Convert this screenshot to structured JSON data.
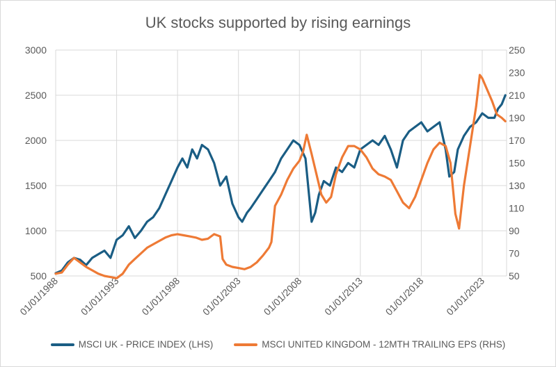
{
  "chart_data": {
    "type": "line",
    "title": "UK stocks supported by rising earnings",
    "x_ticks": [
      "01/01/1988",
      "01/01/1993",
      "01/01/1998",
      "01/01/2003",
      "01/01/2008",
      "01/01/2013",
      "01/01/2018",
      "01/01/2023"
    ],
    "x_range": [
      1988.0,
      2025.0
    ],
    "y_left": {
      "ticks": [
        500,
        1000,
        1500,
        2000,
        2500,
        3000
      ],
      "range": [
        500,
        3000
      ]
    },
    "y_right": {
      "ticks": [
        50,
        70,
        90,
        110,
        130,
        150,
        170,
        190,
        210,
        230,
        250
      ],
      "range": [
        50,
        250
      ]
    },
    "grid": "vertical and horizontal",
    "legend_position": "bottom",
    "colors": {
      "price": "#1a5d84",
      "eps": "#ee7a35",
      "grid": "#d9d9d9"
    },
    "series": [
      {
        "name": "MSCI UK - PRICE INDEX (LHS)",
        "axis": "left",
        "x": [
          1988.0,
          1988.5,
          1989.0,
          1989.5,
          1990.0,
          1990.5,
          1991.0,
          1991.5,
          1992.0,
          1992.5,
          1993.0,
          1993.5,
          1994.0,
          1994.5,
          1995.0,
          1995.5,
          1996.0,
          1996.5,
          1997.0,
          1997.5,
          1998.0,
          1998.4,
          1998.8,
          1999.2,
          1999.6,
          2000.0,
          2000.5,
          2001.0,
          2001.5,
          2002.0,
          2002.5,
          2003.0,
          2003.3,
          2003.7,
          2004.0,
          2004.5,
          2005.0,
          2005.5,
          2006.0,
          2006.5,
          2007.0,
          2007.5,
          2008.0,
          2008.5,
          2009.0,
          2009.3,
          2009.6,
          2010.0,
          2010.5,
          2011.0,
          2011.5,
          2012.0,
          2012.5,
          2013.0,
          2013.5,
          2014.0,
          2014.5,
          2015.0,
          2015.5,
          2016.0,
          2016.5,
          2017.0,
          2017.5,
          2018.0,
          2018.5,
          2019.0,
          2019.5,
          2020.0,
          2020.3,
          2020.7,
          2021.0,
          2021.5,
          2022.0,
          2022.5,
          2023.0,
          2023.5,
          2024.0,
          2024.3,
          2024.6,
          2024.9
        ],
        "values": [
          530,
          560,
          650,
          700,
          680,
          620,
          700,
          740,
          780,
          700,
          900,
          950,
          1050,
          920,
          1000,
          1100,
          1150,
          1250,
          1400,
          1550,
          1700,
          1800,
          1700,
          1900,
          1800,
          1950,
          1900,
          1750,
          1500,
          1600,
          1300,
          1150,
          1100,
          1200,
          1250,
          1350,
          1450,
          1550,
          1650,
          1800,
          1900,
          2000,
          1950,
          1800,
          1100,
          1200,
          1400,
          1550,
          1500,
          1700,
          1650,
          1750,
          1700,
          1900,
          1950,
          2000,
          1950,
          2050,
          1900,
          1700,
          2000,
          2100,
          2150,
          2200,
          2100,
          2150,
          2200,
          1900,
          1600,
          1650,
          1900,
          2050,
          2150,
          2200,
          2300,
          2250,
          2250,
          2350,
          2400,
          2500
        ]
      },
      {
        "name": "MSCI UNITED KINGDOM - 12MTH TRAILING EPS (RHS)",
        "axis": "right",
        "x": [
          1988.0,
          1988.5,
          1989.0,
          1989.5,
          1990.0,
          1990.5,
          1991.0,
          1991.5,
          1992.0,
          1992.5,
          1993.0,
          1993.5,
          1994.0,
          1994.5,
          1995.0,
          1995.5,
          1996.0,
          1996.5,
          1997.0,
          1997.5,
          1998.0,
          1998.5,
          1999.0,
          1999.5,
          2000.0,
          2000.5,
          2001.0,
          2001.5,
          2001.7,
          2002.0,
          2002.5,
          2003.0,
          2003.5,
          2004.0,
          2004.5,
          2005.0,
          2005.5,
          2005.7,
          2006.0,
          2006.5,
          2007.0,
          2007.5,
          2008.0,
          2008.3,
          2008.6,
          2009.0,
          2009.4,
          2009.8,
          2010.2,
          2010.6,
          2011.0,
          2011.5,
          2012.0,
          2012.5,
          2013.0,
          2013.5,
          2014.0,
          2014.5,
          2015.0,
          2015.5,
          2016.0,
          2016.5,
          2017.0,
          2017.5,
          2018.0,
          2018.5,
          2019.0,
          2019.5,
          2020.0,
          2020.4,
          2020.8,
          2021.1,
          2021.5,
          2022.0,
          2022.5,
          2022.8,
          2023.0,
          2023.4,
          2023.8,
          2024.2,
          2024.6,
          2024.9
        ],
        "values": [
          52,
          53,
          60,
          66,
          62,
          58,
          55,
          52,
          50,
          49,
          48,
          52,
          60,
          65,
          70,
          75,
          78,
          81,
          84,
          86,
          87,
          86,
          85,
          84,
          82,
          83,
          87,
          85,
          65,
          60,
          58,
          57,
          56,
          58,
          62,
          68,
          75,
          80,
          112,
          122,
          135,
          145,
          152,
          160,
          175,
          158,
          140,
          122,
          115,
          120,
          140,
          155,
          165,
          165,
          162,
          155,
          145,
          140,
          138,
          135,
          125,
          115,
          110,
          120,
          135,
          150,
          162,
          168,
          165,
          150,
          105,
          92,
          130,
          165,
          200,
          228,
          225,
          215,
          205,
          193,
          190,
          187
        ]
      }
    ]
  }
}
